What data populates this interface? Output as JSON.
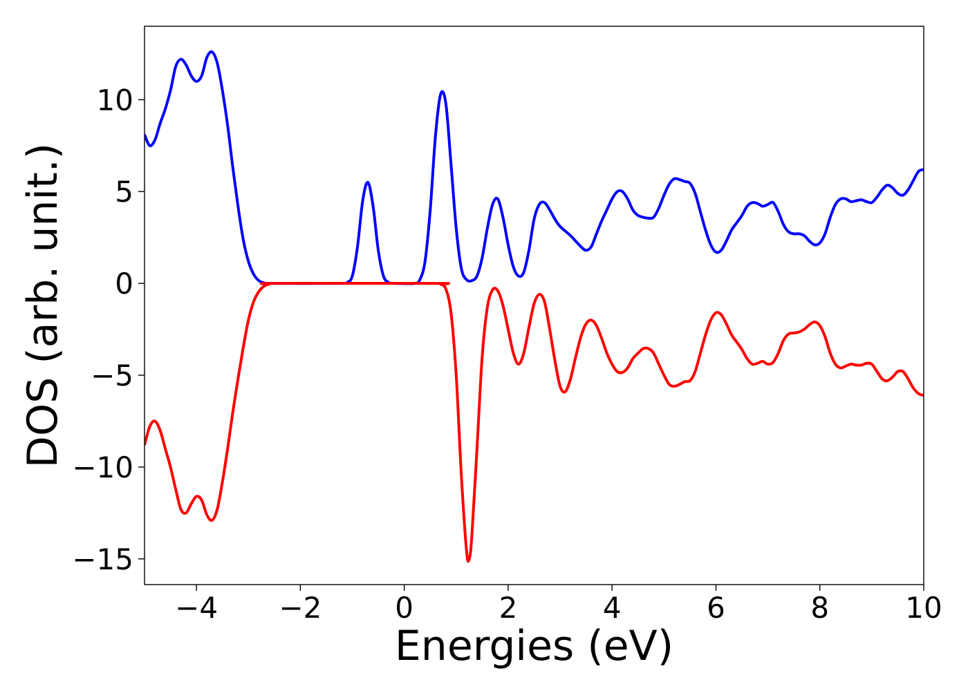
{
  "chart_data": {
    "type": "line",
    "title": "",
    "xlabel": "Energies (eV)",
    "ylabel": "DOS (arb. unit.)",
    "xlim": [
      -5,
      10
    ],
    "ylim": [
      -16.4,
      14.0
    ],
    "grid": false,
    "legend": "none",
    "x_ticks": [
      -4,
      -2,
      0,
      2,
      4,
      6,
      8,
      10
    ],
    "x_tick_labels": [
      "−4",
      "−2",
      "0",
      "2",
      "4",
      "6",
      "8",
      "10"
    ],
    "y_ticks": [
      10,
      5,
      0,
      -5,
      -10,
      -15
    ],
    "y_tick_labels": [
      "10",
      "5",
      "0",
      "−5",
      "−10",
      "−15"
    ],
    "series": [
      {
        "color": "#0000ff",
        "points": [
          [
            -5.0,
            8.1
          ],
          [
            -4.9,
            7.5
          ],
          [
            -4.8,
            7.8
          ],
          [
            -4.7,
            8.7
          ],
          [
            -4.6,
            9.5
          ],
          [
            -4.5,
            10.5
          ],
          [
            -4.4,
            11.8
          ],
          [
            -4.3,
            12.2
          ],
          [
            -4.2,
            11.9
          ],
          [
            -4.1,
            11.3
          ],
          [
            -4.0,
            11.0
          ],
          [
            -3.9,
            11.3
          ],
          [
            -3.8,
            12.3
          ],
          [
            -3.7,
            12.6
          ],
          [
            -3.6,
            12.0
          ],
          [
            -3.5,
            10.5
          ],
          [
            -3.4,
            8.6
          ],
          [
            -3.3,
            6.3
          ],
          [
            -3.2,
            4.2
          ],
          [
            -3.1,
            2.4
          ],
          [
            -3.0,
            1.2
          ],
          [
            -2.9,
            0.5
          ],
          [
            -2.8,
            0.15
          ],
          [
            -2.7,
            0.03
          ],
          [
            -2.6,
            0.0
          ],
          [
            -1.2,
            0.0
          ],
          [
            -1.1,
            0.05
          ],
          [
            -1.0,
            0.4
          ],
          [
            -0.9,
            2.0
          ],
          [
            -0.8,
            4.5
          ],
          [
            -0.7,
            5.5
          ],
          [
            -0.6,
            4.2
          ],
          [
            -0.5,
            1.8
          ],
          [
            -0.4,
            0.4
          ],
          [
            -0.3,
            0.05
          ],
          [
            -0.2,
            0.0
          ],
          [
            0.2,
            0.0
          ],
          [
            0.3,
            0.2
          ],
          [
            0.4,
            1.2
          ],
          [
            0.5,
            4.0
          ],
          [
            0.6,
            8.0
          ],
          [
            0.7,
            10.3
          ],
          [
            0.8,
            9.8
          ],
          [
            0.9,
            6.5
          ],
          [
            1.0,
            3.0
          ],
          [
            1.1,
            0.8
          ],
          [
            1.2,
            0.2
          ],
          [
            1.3,
            0.15
          ],
          [
            1.4,
            0.4
          ],
          [
            1.5,
            1.4
          ],
          [
            1.6,
            3.0
          ],
          [
            1.7,
            4.3
          ],
          [
            1.8,
            4.6
          ],
          [
            1.9,
            3.6
          ],
          [
            2.0,
            2.1
          ],
          [
            2.1,
            0.9
          ],
          [
            2.2,
            0.4
          ],
          [
            2.3,
            0.6
          ],
          [
            2.4,
            1.8
          ],
          [
            2.5,
            3.5
          ],
          [
            2.6,
            4.3
          ],
          [
            2.7,
            4.4
          ],
          [
            2.8,
            4.0
          ],
          [
            2.9,
            3.5
          ],
          [
            3.0,
            3.1
          ],
          [
            3.2,
            2.6
          ],
          [
            3.4,
            2.0
          ],
          [
            3.5,
            1.8
          ],
          [
            3.6,
            2.0
          ],
          [
            3.7,
            2.7
          ],
          [
            3.8,
            3.4
          ],
          [
            3.9,
            4.0
          ],
          [
            4.0,
            4.6
          ],
          [
            4.1,
            5.0
          ],
          [
            4.2,
            5.0
          ],
          [
            4.3,
            4.6
          ],
          [
            4.4,
            4.0
          ],
          [
            4.5,
            3.7
          ],
          [
            4.6,
            3.6
          ],
          [
            4.7,
            3.55
          ],
          [
            4.8,
            3.6
          ],
          [
            4.9,
            4.1
          ],
          [
            5.0,
            4.8
          ],
          [
            5.1,
            5.4
          ],
          [
            5.2,
            5.7
          ],
          [
            5.3,
            5.65
          ],
          [
            5.4,
            5.55
          ],
          [
            5.5,
            5.45
          ],
          [
            5.6,
            4.9
          ],
          [
            5.7,
            3.9
          ],
          [
            5.8,
            2.9
          ],
          [
            5.9,
            2.1
          ],
          [
            6.0,
            1.7
          ],
          [
            6.1,
            1.8
          ],
          [
            6.2,
            2.3
          ],
          [
            6.3,
            2.9
          ],
          [
            6.4,
            3.3
          ],
          [
            6.5,
            3.7
          ],
          [
            6.6,
            4.2
          ],
          [
            6.7,
            4.4
          ],
          [
            6.8,
            4.35
          ],
          [
            6.9,
            4.2
          ],
          [
            7.0,
            4.3
          ],
          [
            7.1,
            4.4
          ],
          [
            7.2,
            3.9
          ],
          [
            7.3,
            3.2
          ],
          [
            7.4,
            2.8
          ],
          [
            7.5,
            2.7
          ],
          [
            7.6,
            2.7
          ],
          [
            7.7,
            2.6
          ],
          [
            7.8,
            2.3
          ],
          [
            7.9,
            2.1
          ],
          [
            8.0,
            2.2
          ],
          [
            8.1,
            2.7
          ],
          [
            8.2,
            3.6
          ],
          [
            8.3,
            4.3
          ],
          [
            8.4,
            4.6
          ],
          [
            8.5,
            4.6
          ],
          [
            8.6,
            4.45
          ],
          [
            8.7,
            4.5
          ],
          [
            8.8,
            4.55
          ],
          [
            8.9,
            4.45
          ],
          [
            9.0,
            4.4
          ],
          [
            9.1,
            4.7
          ],
          [
            9.2,
            5.1
          ],
          [
            9.3,
            5.35
          ],
          [
            9.4,
            5.2
          ],
          [
            9.5,
            4.9
          ],
          [
            9.6,
            4.8
          ],
          [
            9.7,
            5.1
          ],
          [
            9.8,
            5.6
          ],
          [
            9.9,
            6.1
          ],
          [
            10.0,
            6.2
          ]
        ]
      },
      {
        "color": "#ff0000",
        "points": [
          [
            -5.0,
            -8.8
          ],
          [
            -4.9,
            -7.8
          ],
          [
            -4.8,
            -7.5
          ],
          [
            -4.7,
            -8.0
          ],
          [
            -4.6,
            -9.0
          ],
          [
            -4.5,
            -10.0
          ],
          [
            -4.4,
            -11.2
          ],
          [
            -4.3,
            -12.3
          ],
          [
            -4.2,
            -12.5
          ],
          [
            -4.1,
            -12.0
          ],
          [
            -4.0,
            -11.6
          ],
          [
            -3.9,
            -11.8
          ],
          [
            -3.8,
            -12.6
          ],
          [
            -3.7,
            -12.9
          ],
          [
            -3.6,
            -12.3
          ],
          [
            -3.5,
            -10.8
          ],
          [
            -3.4,
            -9.0
          ],
          [
            -3.3,
            -7.0
          ],
          [
            -3.2,
            -5.2
          ],
          [
            -3.1,
            -3.5
          ],
          [
            -3.0,
            -2.0
          ],
          [
            -2.9,
            -1.0
          ],
          [
            -2.8,
            -0.45
          ],
          [
            -2.7,
            -0.15
          ],
          [
            -2.6,
            -0.04
          ],
          [
            -2.5,
            0.0
          ],
          [
            0.6,
            0.0
          ],
          [
            0.7,
            -0.05
          ],
          [
            0.8,
            -0.3
          ],
          [
            0.9,
            -1.6
          ],
          [
            1.0,
            -5.0
          ],
          [
            1.1,
            -10.5
          ],
          [
            1.2,
            -14.6
          ],
          [
            1.25,
            -15.0
          ],
          [
            1.3,
            -13.8
          ],
          [
            1.4,
            -9.0
          ],
          [
            1.5,
            -4.0
          ],
          [
            1.6,
            -1.3
          ],
          [
            1.7,
            -0.35
          ],
          [
            1.8,
            -0.4
          ],
          [
            1.9,
            -1.2
          ],
          [
            2.0,
            -2.5
          ],
          [
            2.1,
            -3.8
          ],
          [
            2.2,
            -4.4
          ],
          [
            2.3,
            -3.8
          ],
          [
            2.4,
            -2.4
          ],
          [
            2.5,
            -1.1
          ],
          [
            2.6,
            -0.6
          ],
          [
            2.7,
            -1.0
          ],
          [
            2.8,
            -2.5
          ],
          [
            2.9,
            -4.2
          ],
          [
            3.0,
            -5.6
          ],
          [
            3.1,
            -5.9
          ],
          [
            3.2,
            -5.2
          ],
          [
            3.3,
            -4.0
          ],
          [
            3.4,
            -2.9
          ],
          [
            3.5,
            -2.2
          ],
          [
            3.6,
            -2.0
          ],
          [
            3.7,
            -2.3
          ],
          [
            3.8,
            -3.0
          ],
          [
            3.9,
            -3.8
          ],
          [
            4.0,
            -4.4
          ],
          [
            4.1,
            -4.8
          ],
          [
            4.2,
            -4.85
          ],
          [
            4.3,
            -4.6
          ],
          [
            4.4,
            -4.1
          ],
          [
            4.5,
            -3.8
          ],
          [
            4.6,
            -3.55
          ],
          [
            4.7,
            -3.55
          ],
          [
            4.8,
            -3.8
          ],
          [
            4.9,
            -4.4
          ],
          [
            5.0,
            -5.0
          ],
          [
            5.1,
            -5.5
          ],
          [
            5.2,
            -5.6
          ],
          [
            5.3,
            -5.5
          ],
          [
            5.4,
            -5.35
          ],
          [
            5.5,
            -5.3
          ],
          [
            5.6,
            -4.8
          ],
          [
            5.7,
            -3.8
          ],
          [
            5.8,
            -2.8
          ],
          [
            5.9,
            -2.0
          ],
          [
            6.0,
            -1.6
          ],
          [
            6.1,
            -1.7
          ],
          [
            6.2,
            -2.2
          ],
          [
            6.3,
            -2.8
          ],
          [
            6.4,
            -3.2
          ],
          [
            6.5,
            -3.6
          ],
          [
            6.6,
            -4.1
          ],
          [
            6.7,
            -4.4
          ],
          [
            6.8,
            -4.35
          ],
          [
            6.9,
            -4.25
          ],
          [
            7.0,
            -4.4
          ],
          [
            7.1,
            -4.3
          ],
          [
            7.2,
            -3.8
          ],
          [
            7.3,
            -3.1
          ],
          [
            7.4,
            -2.75
          ],
          [
            7.5,
            -2.7
          ],
          [
            7.6,
            -2.65
          ],
          [
            7.7,
            -2.5
          ],
          [
            7.8,
            -2.25
          ],
          [
            7.9,
            -2.1
          ],
          [
            8.0,
            -2.3
          ],
          [
            8.1,
            -2.9
          ],
          [
            8.2,
            -3.8
          ],
          [
            8.3,
            -4.4
          ],
          [
            8.4,
            -4.6
          ],
          [
            8.5,
            -4.5
          ],
          [
            8.6,
            -4.4
          ],
          [
            8.7,
            -4.45
          ],
          [
            8.8,
            -4.45
          ],
          [
            8.9,
            -4.35
          ],
          [
            9.0,
            -4.4
          ],
          [
            9.1,
            -4.8
          ],
          [
            9.2,
            -5.2
          ],
          [
            9.3,
            -5.3
          ],
          [
            9.4,
            -5.1
          ],
          [
            9.5,
            -4.8
          ],
          [
            9.6,
            -4.8
          ],
          [
            9.7,
            -5.2
          ],
          [
            9.8,
            -5.7
          ],
          [
            9.9,
            -6.0
          ],
          [
            10.0,
            -6.1
          ]
        ]
      }
    ]
  }
}
